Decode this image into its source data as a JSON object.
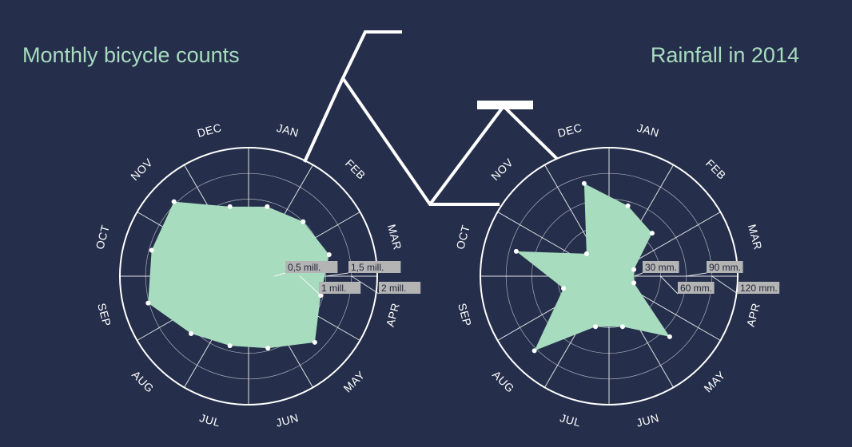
{
  "colors": {
    "background": "#252f4b",
    "accent": "#a8dcbf",
    "line": "#ffffff",
    "tick_label_bg": "#b4b4b4"
  },
  "chart_data": [
    {
      "type": "radar",
      "title": "Monthly bicycle counts",
      "categories": [
        "JAN",
        "FEB",
        "MAR",
        "APR",
        "MAY",
        "JUN",
        "JUL",
        "AUG",
        "SEP",
        "OCT",
        "NOV",
        "DEC"
      ],
      "values": [
        1.4,
        1.5,
        1.62,
        1.45,
        1.82,
        1.45,
        1.4,
        1.58,
        2.02,
        1.95,
        2.05,
        1.4
      ],
      "rlim": [
        0,
        2.5
      ],
      "ticks": [
        0.5,
        1,
        1.5,
        2
      ],
      "tick_labels": [
        "0,5 mill.",
        "1 mill.",
        "1,5 mill.",
        "2 mill."
      ],
      "grid": true
    },
    {
      "type": "radar",
      "title": "Rainfall in 2014",
      "categories": [
        "JAN",
        "FEB",
        "MAR",
        "APR",
        "MAY",
        "JUN",
        "JUL",
        "AUG",
        "SEP",
        "OCT",
        "NOV",
        "DEC"
      ],
      "values": [
        85,
        71,
        30,
        30,
        100,
        61,
        61,
        123,
        55,
        112,
        37,
        112
      ],
      "rlim": [
        0,
        150
      ],
      "ticks": [
        30,
        60,
        90,
        120
      ],
      "tick_labels": [
        "30 mm.",
        "60 mm.",
        "90 mm.",
        "120 mm."
      ],
      "grid": true
    }
  ]
}
